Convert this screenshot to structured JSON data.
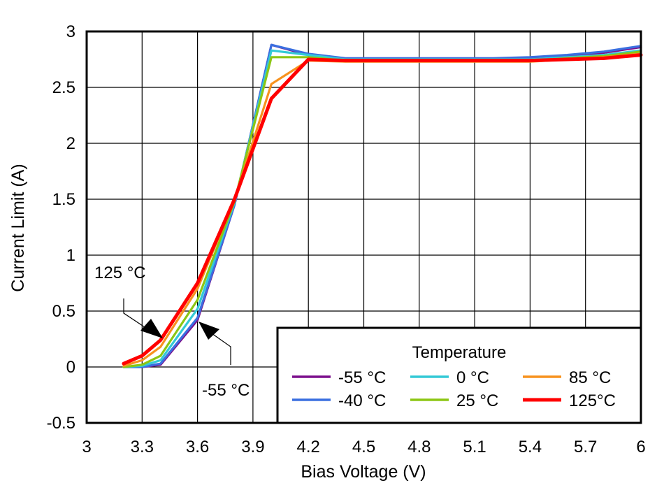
{
  "chart_data": {
    "type": "line",
    "title": "",
    "xlabel": "Bias Voltage (V)",
    "ylabel": "Current Limit (A)",
    "xlim": [
      3,
      6
    ],
    "ylim": [
      -0.5,
      3
    ],
    "grid": true,
    "x_ticks": [
      3,
      3.3,
      3.6,
      3.9,
      4.2,
      4.5,
      4.8,
      5.1,
      5.4,
      5.7,
      6
    ],
    "x_tick_labels": [
      "3",
      "3.3",
      "3.6",
      "3.9",
      "4.2",
      "4.5",
      "4.8",
      "5.1",
      "5.4",
      "5.7",
      "6"
    ],
    "y_ticks": [
      -0.5,
      0,
      0.5,
      1,
      1.5,
      2,
      2.5,
      3
    ],
    "y_tick_labels": [
      "-0.5",
      "0",
      "0.5",
      "1",
      "1.5",
      "2",
      "2.5",
      "3"
    ],
    "legend": {
      "title": "Temperature",
      "placement": "bottom-right"
    },
    "series": [
      {
        "name": "-55 °C",
        "color": "#7B0F8C",
        "x": [
          3.2,
          3.3,
          3.4,
          3.6,
          3.8,
          4.0,
          4.2,
          4.4,
          4.6,
          4.8,
          5.0,
          5.2,
          5.4,
          5.6,
          5.8,
          6.0
        ],
        "y": [
          0.0,
          0.0,
          0.02,
          0.42,
          1.45,
          2.88,
          2.79,
          2.75,
          2.75,
          2.75,
          2.75,
          2.75,
          2.76,
          2.78,
          2.81,
          2.86
        ]
      },
      {
        "name": "-40 °C",
        "color": "#3A6FE0",
        "x": [
          3.2,
          3.3,
          3.4,
          3.6,
          3.8,
          4.0,
          4.2,
          4.4,
          4.6,
          4.8,
          5.0,
          5.2,
          5.4,
          5.6,
          5.8,
          6.0
        ],
        "y": [
          0.0,
          0.0,
          0.03,
          0.44,
          1.45,
          2.88,
          2.8,
          2.76,
          2.76,
          2.76,
          2.76,
          2.76,
          2.77,
          2.79,
          2.82,
          2.87
        ]
      },
      {
        "name": "0 °C",
        "color": "#33C9D6",
        "x": [
          3.2,
          3.3,
          3.4,
          3.6,
          3.8,
          4.0,
          4.2,
          4.4,
          4.6,
          4.8,
          5.0,
          5.2,
          5.4,
          5.6,
          5.8,
          6.0
        ],
        "y": [
          0.0,
          0.01,
          0.06,
          0.52,
          1.47,
          2.83,
          2.79,
          2.75,
          2.75,
          2.75,
          2.75,
          2.75,
          2.75,
          2.77,
          2.79,
          2.83
        ]
      },
      {
        "name": "25 °C",
        "color": "#8CC614",
        "x": [
          3.2,
          3.3,
          3.4,
          3.6,
          3.8,
          4.0,
          4.2,
          4.4,
          4.6,
          4.8,
          5.0,
          5.2,
          5.4,
          5.6,
          5.8,
          6.0
        ],
        "y": [
          0.0,
          0.02,
          0.1,
          0.6,
          1.48,
          2.77,
          2.77,
          2.74,
          2.74,
          2.74,
          2.74,
          2.74,
          2.74,
          2.76,
          2.78,
          2.82
        ]
      },
      {
        "name": "85 °C",
        "color": "#F7921E",
        "x": [
          3.2,
          3.3,
          3.4,
          3.6,
          3.8,
          4.0,
          4.2,
          4.4,
          4.6,
          4.8,
          5.0,
          5.2,
          5.4,
          5.6,
          5.8,
          6.0
        ],
        "y": [
          0.01,
          0.06,
          0.18,
          0.7,
          1.5,
          2.53,
          2.74,
          2.73,
          2.73,
          2.73,
          2.73,
          2.73,
          2.73,
          2.75,
          2.77,
          2.8
        ]
      },
      {
        "name": "125°C",
        "color": "#FF0000",
        "x": [
          3.2,
          3.3,
          3.4,
          3.6,
          3.8,
          4.0,
          4.2,
          4.4,
          4.6,
          4.8,
          5.0,
          5.2,
          5.4,
          5.6,
          5.8,
          6.0
        ],
        "y": [
          0.03,
          0.1,
          0.24,
          0.75,
          1.5,
          2.4,
          2.75,
          2.74,
          2.74,
          2.74,
          2.74,
          2.74,
          2.74,
          2.75,
          2.76,
          2.79
        ]
      }
    ],
    "annotations": [
      {
        "text": "125 °C",
        "points_to": "125°C"
      },
      {
        "text": "-55 °C",
        "points_to": "-55 °C"
      }
    ]
  }
}
